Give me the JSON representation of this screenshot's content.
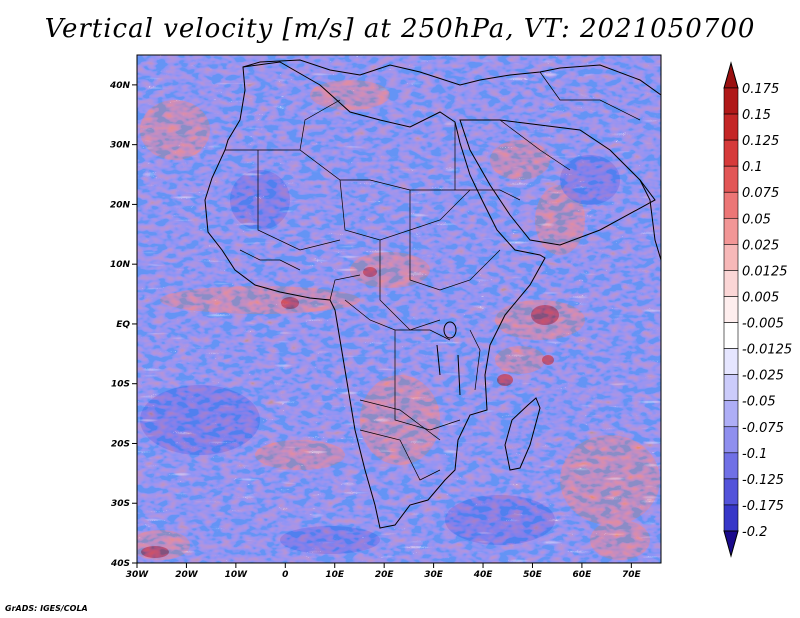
{
  "figure": {
    "title": "Vertical velocity [m/s] at 250hPa, VT: 2021050700",
    "credit": "GrADS: IGES/COLA"
  },
  "map": {
    "lon_range": [
      -30,
      76
    ],
    "lat_range": [
      -40,
      45
    ],
    "lat_ticks": [
      {
        "value": 40,
        "label": "40N"
      },
      {
        "value": 30,
        "label": "30N"
      },
      {
        "value": 20,
        "label": "20N"
      },
      {
        "value": 10,
        "label": "10N"
      },
      {
        "value": 0,
        "label": "EQ"
      },
      {
        "value": -10,
        "label": "10S"
      },
      {
        "value": -20,
        "label": "20S"
      },
      {
        "value": -30,
        "label": "30S"
      },
      {
        "value": -40,
        "label": "40S"
      }
    ],
    "lon_ticks": [
      {
        "value": -30,
        "label": "30W"
      },
      {
        "value": -20,
        "label": "20W"
      },
      {
        "value": -10,
        "label": "10W"
      },
      {
        "value": 0,
        "label": "0"
      },
      {
        "value": 10,
        "label": "10E"
      },
      {
        "value": 20,
        "label": "20E"
      },
      {
        "value": 30,
        "label": "30E"
      },
      {
        "value": 40,
        "label": "40E"
      },
      {
        "value": 50,
        "label": "50E"
      },
      {
        "value": 60,
        "label": "60E"
      },
      {
        "value": 70,
        "label": "70E"
      }
    ]
  },
  "colorbar": {
    "levels": [
      {
        "label": "0.175",
        "color": "#b01818"
      },
      {
        "label": "0.15",
        "color": "#c42626"
      },
      {
        "label": "0.125",
        "color": "#d63a3a"
      },
      {
        "label": "0.1",
        "color": "#e25656"
      },
      {
        "label": "0.075",
        "color": "#ec7676"
      },
      {
        "label": "0.05",
        "color": "#f29696"
      },
      {
        "label": "0.025",
        "color": "#f7b8b8"
      },
      {
        "label": "0.0125",
        "color": "#fbd6d6"
      },
      {
        "label": "0.005",
        "color": "#feeeee"
      },
      {
        "label": "-0.005",
        "color": "#ffffff"
      },
      {
        "label": "-0.0125",
        "color": "#e6e6ff"
      },
      {
        "label": "-0.025",
        "color": "#ccccfb"
      },
      {
        "label": "-0.05",
        "color": "#aeaef6"
      },
      {
        "label": "-0.075",
        "color": "#8f8fef"
      },
      {
        "label": "-0.1",
        "color": "#7070e6"
      },
      {
        "label": "-0.125",
        "color": "#5353da"
      },
      {
        "label": "-0.175",
        "color": "#3737c8"
      },
      {
        "label": "-0.2",
        "color": "#2020b0"
      }
    ],
    "top_cap_color": "#9a1010",
    "bottom_cap_color": "#1a0a8c"
  }
}
